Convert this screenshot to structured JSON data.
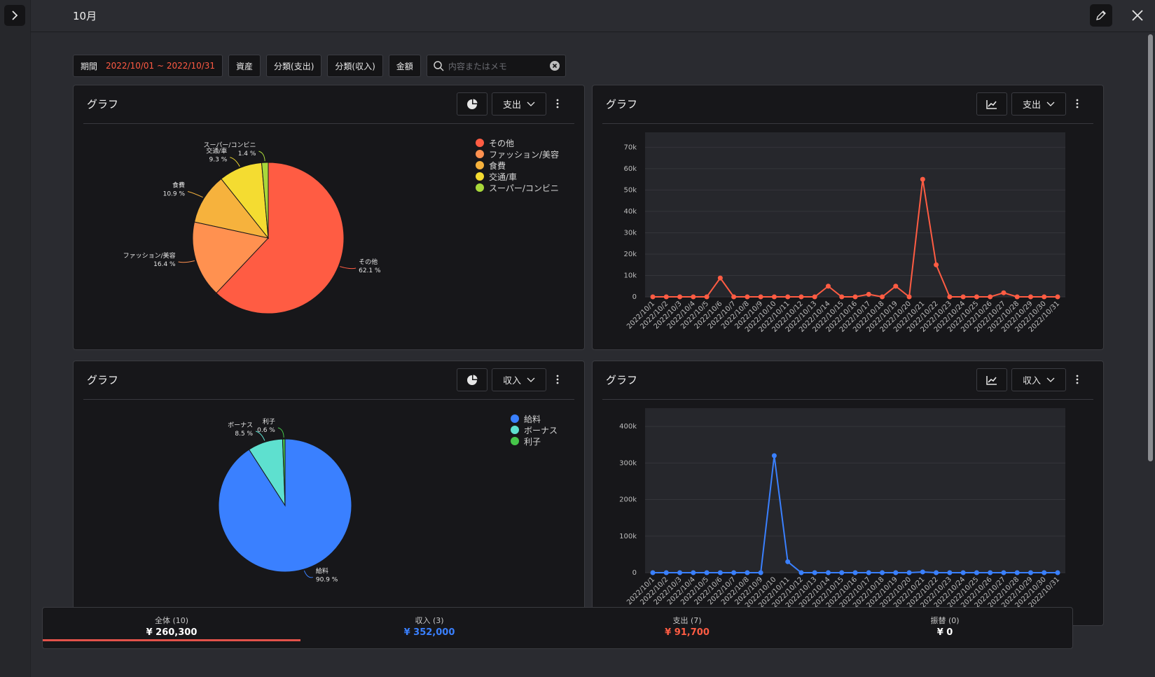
{
  "header": {
    "title": "10月"
  },
  "filters": {
    "period_label": "期間",
    "period_value": "2022/10/01 ~ 2022/10/31",
    "asset": "資産",
    "cat_expense": "分類(支出)",
    "cat_income": "分類(収入)",
    "amount": "金額",
    "search_placeholder": "内容またはメモ"
  },
  "panels": {
    "expense_pie": {
      "title": "グラフ",
      "type_label": "支出"
    },
    "expense_line": {
      "title": "グラフ",
      "type_label": "支出"
    },
    "income_pie": {
      "title": "グラフ",
      "type_label": "収入"
    },
    "income_line": {
      "title": "グラフ",
      "type_label": "収入"
    }
  },
  "chart_data": [
    {
      "type": "pie",
      "slices": [
        {
          "label": "その他",
          "percent": 62.1,
          "display": "62.1 %",
          "color": "#ff5c43"
        },
        {
          "label": "ファッション/美容",
          "percent": 16.4,
          "display": "16.4 %",
          "color": "#ff9150"
        },
        {
          "label": "食費",
          "percent": 10.9,
          "display": "10.9 %",
          "color": "#f6b23d"
        },
        {
          "label": "交通/車",
          "percent": 9.3,
          "display": "9.3 %",
          "color": "#f4dc31"
        },
        {
          "label": "スーパー/コンビニ",
          "percent": 1.4,
          "display": "1.4 %",
          "color": "#a8d83a"
        }
      ],
      "legend_position": "top-right"
    },
    {
      "type": "line",
      "x": [
        "2022/10/1",
        "2022/10/2",
        "2022/10/3",
        "2022/10/4",
        "2022/10/5",
        "2022/10/6",
        "2022/10/7",
        "2022/10/8",
        "2022/10/9",
        "2022/10/10",
        "2022/10/11",
        "2022/10/12",
        "2022/10/13",
        "2022/10/14",
        "2022/10/15",
        "2022/10/16",
        "2022/10/17",
        "2022/10/18",
        "2022/10/19",
        "2022/10/20",
        "2022/10/21",
        "2022/10/22",
        "2022/10/23",
        "2022/10/24",
        "2022/10/25",
        "2022/10/26",
        "2022/10/27",
        "2022/10/28",
        "2022/10/29",
        "2022/10/30",
        "2022/10/31"
      ],
      "values": [
        0,
        0,
        0,
        0,
        0,
        8800,
        0,
        0,
        0,
        0,
        0,
        0,
        0,
        5000,
        0,
        0,
        1200,
        0,
        5000,
        0,
        55000,
        15000,
        0,
        0,
        0,
        0,
        1900,
        0,
        0,
        0,
        0
      ],
      "yticks": [
        0,
        10000,
        20000,
        30000,
        40000,
        50000,
        60000,
        70000
      ],
      "ytick_labels": [
        "0",
        "10k",
        "20k",
        "30k",
        "40k",
        "50k",
        "60k",
        "70k"
      ],
      "ylim": [
        0,
        77000
      ],
      "color": "#ff5c43"
    },
    {
      "type": "pie",
      "slices": [
        {
          "label": "給料",
          "percent": 90.9,
          "display": "90.9 %",
          "color": "#3a80ff"
        },
        {
          "label": "ボーナス",
          "percent": 8.5,
          "display": "8.5 %",
          "color": "#5ee0cf"
        },
        {
          "label": "利子",
          "percent": 0.6,
          "display": "0.6 %",
          "color": "#46c64a"
        }
      ],
      "legend_position": "top-right"
    },
    {
      "type": "line",
      "x": [
        "2022/10/1",
        "2022/10/2",
        "2022/10/3",
        "2022/10/4",
        "2022/10/5",
        "2022/10/6",
        "2022/10/7",
        "2022/10/8",
        "2022/10/9",
        "2022/10/10",
        "2022/10/11",
        "2022/10/12",
        "2022/10/13",
        "2022/10/14",
        "2022/10/15",
        "2022/10/16",
        "2022/10/17",
        "2022/10/18",
        "2022/10/19",
        "2022/10/20",
        "2022/10/21",
        "2022/10/22",
        "2022/10/23",
        "2022/10/24",
        "2022/10/25",
        "2022/10/26",
        "2022/10/27",
        "2022/10/28",
        "2022/10/29",
        "2022/10/30",
        "2022/10/31"
      ],
      "values": [
        0,
        0,
        0,
        0,
        0,
        0,
        0,
        0,
        0,
        320000,
        30000,
        0,
        0,
        0,
        0,
        0,
        0,
        0,
        0,
        0,
        2000,
        0,
        0,
        0,
        0,
        0,
        0,
        0,
        0,
        0,
        0
      ],
      "yticks": [
        0,
        100000,
        200000,
        300000,
        400000
      ],
      "ytick_labels": [
        "0",
        "100k",
        "200k",
        "300k",
        "400k"
      ],
      "ylim": [
        0,
        450000
      ],
      "color": "#3a80ff"
    }
  ],
  "summary_tabs": [
    {
      "label": "全体 (10)",
      "amount": "¥ 260,300",
      "color": "#ffffff"
    },
    {
      "label": "収入 (3)",
      "amount": "¥ 352,000",
      "color": "#3a80ff"
    },
    {
      "label": "支出 (7)",
      "amount": "¥ 91,700",
      "color": "#ff5c43"
    },
    {
      "label": "振替 (0)",
      "amount": "¥ 0",
      "color": "#ffffff"
    }
  ]
}
